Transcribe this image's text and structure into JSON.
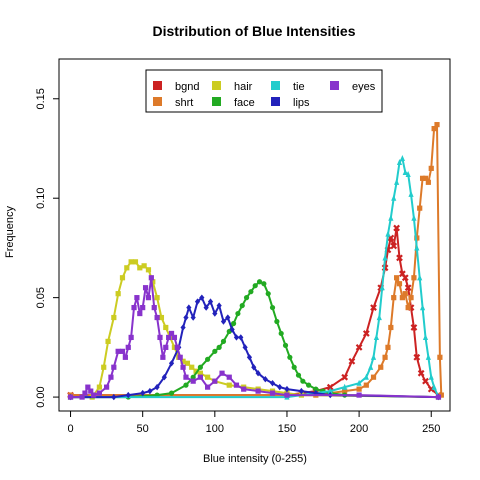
{
  "chart_data": {
    "type": "line",
    "title": "Distribution of Blue Intensities",
    "xlabel": "Blue  intensity (0-255)",
    "ylabel": "Frequency",
    "xlim": [
      -8,
      263
    ],
    "ylim": [
      -0.007,
      0.17
    ],
    "xticks": [
      0,
      50,
      100,
      150,
      200,
      250
    ],
    "yticks": [
      0.0,
      0.05,
      0.1,
      0.15
    ],
    "xtick_labels": [
      "0",
      "50",
      "100",
      "150",
      "200",
      "250"
    ],
    "ytick_labels": [
      "0.00",
      "0.05",
      "0.10",
      "0.15"
    ],
    "legend_position": "top",
    "grid": false,
    "series": [
      {
        "name": "bgnd",
        "color": "#cc2222",
        "marker": "x",
        "points": [
          [
            0,
            0.001
          ],
          [
            150,
            0.001
          ],
          [
            160,
            0.002
          ],
          [
            170,
            0.003
          ],
          [
            180,
            0.005
          ],
          [
            190,
            0.01
          ],
          [
            195,
            0.018
          ],
          [
            200,
            0.025
          ],
          [
            205,
            0.032
          ],
          [
            210,
            0.045
          ],
          [
            215,
            0.055
          ],
          [
            218,
            0.065
          ],
          [
            220,
            0.074
          ],
          [
            222,
            0.08
          ],
          [
            224,
            0.076
          ],
          [
            226,
            0.085
          ],
          [
            228,
            0.07
          ],
          [
            230,
            0.062
          ],
          [
            232,
            0.06
          ],
          [
            234,
            0.055
          ],
          [
            236,
            0.045
          ],
          [
            238,
            0.035
          ],
          [
            240,
            0.02
          ],
          [
            243,
            0.012
          ],
          [
            246,
            0.008
          ],
          [
            250,
            0.004
          ],
          [
            255,
            0.001
          ]
        ]
      },
      {
        "name": "shrt",
        "color": "#dd7a2a",
        "marker": "square",
        "points": [
          [
            0,
            0.001
          ],
          [
            170,
            0.001
          ],
          [
            180,
            0.002
          ],
          [
            190,
            0.003
          ],
          [
            200,
            0.004
          ],
          [
            205,
            0.006
          ],
          [
            210,
            0.01
          ],
          [
            215,
            0.015
          ],
          [
            218,
            0.02
          ],
          [
            220,
            0.025
          ],
          [
            222,
            0.035
          ],
          [
            224,
            0.05
          ],
          [
            226,
            0.06
          ],
          [
            228,
            0.057
          ],
          [
            230,
            0.05
          ],
          [
            232,
            0.052
          ],
          [
            234,
            0.045
          ],
          [
            236,
            0.05
          ],
          [
            238,
            0.06
          ],
          [
            240,
            0.08
          ],
          [
            242,
            0.095
          ],
          [
            244,
            0.11
          ],
          [
            246,
            0.11
          ],
          [
            248,
            0.108
          ],
          [
            250,
            0.115
          ],
          [
            252,
            0.135
          ],
          [
            254,
            0.137
          ],
          [
            256,
            0.02
          ],
          [
            257,
            0.001
          ]
        ]
      },
      {
        "name": "hair",
        "color": "#cccc22",
        "marker": "square",
        "points": [
          [
            0,
            0.0
          ],
          [
            15,
            0.0
          ],
          [
            20,
            0.005
          ],
          [
            23,
            0.015
          ],
          [
            26,
            0.028
          ],
          [
            30,
            0.04
          ],
          [
            33,
            0.052
          ],
          [
            36,
            0.06
          ],
          [
            39,
            0.065
          ],
          [
            42,
            0.068
          ],
          [
            45,
            0.068
          ],
          [
            48,
            0.065
          ],
          [
            51,
            0.066
          ],
          [
            54,
            0.064
          ],
          [
            57,
            0.058
          ],
          [
            60,
            0.05
          ],
          [
            63,
            0.04
          ],
          [
            66,
            0.035
          ],
          [
            69,
            0.03
          ],
          [
            72,
            0.025
          ],
          [
            75,
            0.02
          ],
          [
            78,
            0.018
          ],
          [
            81,
            0.017
          ],
          [
            84,
            0.015
          ],
          [
            87,
            0.013
          ],
          [
            90,
            0.012
          ],
          [
            95,
            0.01
          ],
          [
            100,
            0.008
          ],
          [
            110,
            0.006
          ],
          [
            120,
            0.005
          ],
          [
            130,
            0.004
          ],
          [
            140,
            0.003
          ],
          [
            150,
            0.002
          ],
          [
            160,
            0.001
          ],
          [
            255,
            0.0
          ]
        ]
      },
      {
        "name": "face",
        "color": "#22aa22",
        "marker": "circle",
        "points": [
          [
            0,
            0.0
          ],
          [
            40,
            0.0
          ],
          [
            60,
            0.001
          ],
          [
            70,
            0.002
          ],
          [
            80,
            0.006
          ],
          [
            85,
            0.01
          ],
          [
            90,
            0.015
          ],
          [
            95,
            0.019
          ],
          [
            100,
            0.023
          ],
          [
            103,
            0.025
          ],
          [
            106,
            0.028
          ],
          [
            110,
            0.033
          ],
          [
            113,
            0.037
          ],
          [
            116,
            0.042
          ],
          [
            119,
            0.046
          ],
          [
            122,
            0.05
          ],
          [
            125,
            0.053
          ],
          [
            128,
            0.056
          ],
          [
            131,
            0.058
          ],
          [
            134,
            0.057
          ],
          [
            137,
            0.052
          ],
          [
            140,
            0.045
          ],
          [
            143,
            0.038
          ],
          [
            146,
            0.032
          ],
          [
            149,
            0.026
          ],
          [
            152,
            0.02
          ],
          [
            155,
            0.015
          ],
          [
            158,
            0.011
          ],
          [
            161,
            0.008
          ],
          [
            165,
            0.006
          ],
          [
            170,
            0.004
          ],
          [
            175,
            0.003
          ],
          [
            180,
            0.002
          ],
          [
            190,
            0.001
          ],
          [
            255,
            0.0
          ]
        ]
      },
      {
        "name": "tie",
        "color": "#22cccc",
        "marker": "triangle",
        "points": [
          [
            0,
            0.0
          ],
          [
            150,
            0.0
          ],
          [
            170,
            0.002
          ],
          [
            180,
            0.003
          ],
          [
            190,
            0.005
          ],
          [
            200,
            0.007
          ],
          [
            205,
            0.01
          ],
          [
            208,
            0.015
          ],
          [
            210,
            0.02
          ],
          [
            212,
            0.03
          ],
          [
            214,
            0.04
          ],
          [
            216,
            0.055
          ],
          [
            218,
            0.07
          ],
          [
            220,
            0.082
          ],
          [
            222,
            0.09
          ],
          [
            224,
            0.1
          ],
          [
            226,
            0.108
          ],
          [
            228,
            0.118
          ],
          [
            230,
            0.12
          ],
          [
            232,
            0.113
          ],
          [
            234,
            0.112
          ],
          [
            236,
            0.102
          ],
          [
            238,
            0.09
          ],
          [
            240,
            0.075
          ],
          [
            242,
            0.06
          ],
          [
            244,
            0.045
          ],
          [
            246,
            0.03
          ],
          [
            248,
            0.02
          ],
          [
            250,
            0.01
          ],
          [
            252,
            0.005
          ],
          [
            255,
            0.0
          ]
        ]
      },
      {
        "name": "lips",
        "color": "#2222bb",
        "marker": "diamond",
        "points": [
          [
            0,
            0.0
          ],
          [
            30,
            0.0
          ],
          [
            40,
            0.001
          ],
          [
            50,
            0.002
          ],
          [
            55,
            0.003
          ],
          [
            60,
            0.005
          ],
          [
            65,
            0.01
          ],
          [
            70,
            0.017
          ],
          [
            75,
            0.025
          ],
          [
            78,
            0.035
          ],
          [
            80,
            0.04
          ],
          [
            82,
            0.045
          ],
          [
            85,
            0.04
          ],
          [
            88,
            0.048
          ],
          [
            91,
            0.05
          ],
          [
            94,
            0.045
          ],
          [
            97,
            0.048
          ],
          [
            100,
            0.042
          ],
          [
            103,
            0.046
          ],
          [
            106,
            0.038
          ],
          [
            109,
            0.04
          ],
          [
            112,
            0.034
          ],
          [
            115,
            0.03
          ],
          [
            118,
            0.03
          ],
          [
            121,
            0.025
          ],
          [
            124,
            0.02
          ],
          [
            127,
            0.015
          ],
          [
            130,
            0.012
          ],
          [
            135,
            0.009
          ],
          [
            140,
            0.007
          ],
          [
            145,
            0.005
          ],
          [
            150,
            0.004
          ],
          [
            160,
            0.003
          ],
          [
            170,
            0.002
          ],
          [
            180,
            0.001
          ],
          [
            255,
            0.0
          ]
        ]
      },
      {
        "name": "eyes",
        "color": "#8833cc",
        "marker": "square",
        "points": [
          [
            0,
            0.0
          ],
          [
            8,
            0.0
          ],
          [
            10,
            0.002
          ],
          [
            12,
            0.005
          ],
          [
            14,
            0.003
          ],
          [
            16,
            0.001
          ],
          [
            20,
            0.002
          ],
          [
            25,
            0.005
          ],
          [
            28,
            0.01
          ],
          [
            30,
            0.015
          ],
          [
            33,
            0.023
          ],
          [
            36,
            0.023
          ],
          [
            38,
            0.02
          ],
          [
            40,
            0.025
          ],
          [
            42,
            0.03
          ],
          [
            44,
            0.045
          ],
          [
            46,
            0.05
          ],
          [
            48,
            0.042
          ],
          [
            50,
            0.045
          ],
          [
            52,
            0.055
          ],
          [
            54,
            0.05
          ],
          [
            56,
            0.06
          ],
          [
            58,
            0.045
          ],
          [
            60,
            0.04
          ],
          [
            62,
            0.03
          ],
          [
            64,
            0.02
          ],
          [
            66,
            0.025
          ],
          [
            68,
            0.03
          ],
          [
            70,
            0.032
          ],
          [
            72,
            0.03
          ],
          [
            74,
            0.025
          ],
          [
            76,
            0.02
          ],
          [
            78,
            0.015
          ],
          [
            80,
            0.01
          ],
          [
            85,
            0.008
          ],
          [
            90,
            0.01
          ],
          [
            95,
            0.005
          ],
          [
            100,
            0.008
          ],
          [
            105,
            0.012
          ],
          [
            110,
            0.01
          ],
          [
            115,
            0.006
          ],
          [
            120,
            0.004
          ],
          [
            130,
            0.003
          ],
          [
            140,
            0.002
          ],
          [
            150,
            0.001
          ],
          [
            200,
            0.001
          ],
          [
            255,
            0.0
          ]
        ]
      }
    ]
  }
}
